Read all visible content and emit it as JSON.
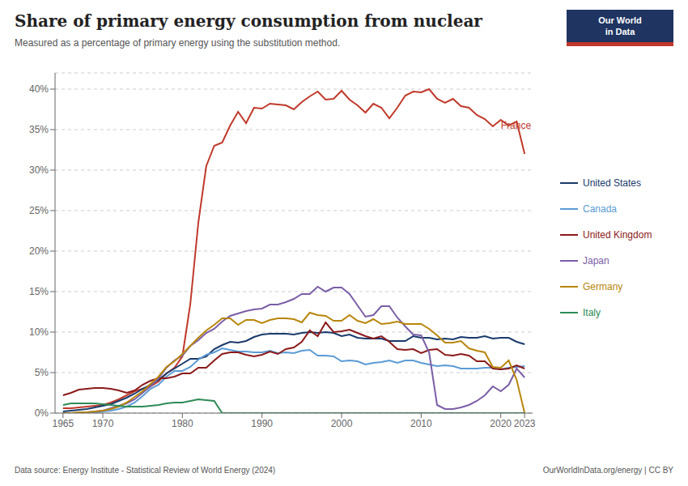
{
  "chart_data": {
    "type": "line",
    "title": "Share of primary energy consumption from nuclear",
    "subtitle": "Measured as a percentage of primary energy using the substitution method.",
    "source": "Data source: Energy Institute - Statistical Review of World Energy (2024)",
    "credit": "OurWorldInData.org/energy | CC BY",
    "logo_text": [
      "Our World",
      "in Data"
    ],
    "logo_colors": [
      "#1f3461",
      "#c0392b"
    ],
    "x": [
      1965,
      1966,
      1967,
      1968,
      1969,
      1970,
      1971,
      1972,
      1973,
      1974,
      1975,
      1976,
      1977,
      1978,
      1979,
      1980,
      1981,
      1982,
      1983,
      1984,
      1985,
      1986,
      1987,
      1988,
      1989,
      1990,
      1991,
      1992,
      1993,
      1994,
      1995,
      1996,
      1997,
      1998,
      1999,
      2000,
      2001,
      2002,
      2003,
      2004,
      2005,
      2006,
      2007,
      2008,
      2009,
      2010,
      2011,
      2012,
      2013,
      2014,
      2015,
      2016,
      2017,
      2018,
      2019,
      2020,
      2021,
      2022,
      2023
    ],
    "series": [
      {
        "name": "France",
        "color": "#c0392b",
        "values": [
          0.6,
          0.6,
          0.7,
          0.8,
          0.9,
          1.0,
          1.3,
          1.7,
          2.2,
          2.7,
          3.0,
          3.3,
          3.9,
          4.9,
          5.6,
          7.0,
          13.5,
          23.5,
          30.5,
          33.0,
          33.4,
          35.5,
          37.2,
          35.8,
          37.7,
          37.6,
          38.2,
          38.1,
          38.0,
          37.5,
          38.4,
          39.1,
          39.7,
          38.7,
          38.8,
          39.8,
          38.7,
          38.0,
          37.1,
          38.2,
          37.7,
          36.4,
          37.7,
          39.2,
          39.7,
          39.6,
          40.0,
          38.8,
          38.3,
          38.8,
          37.9,
          37.7,
          36.8,
          36.3,
          35.4,
          36.2,
          35.5,
          36.0,
          32.0
        ]
      },
      {
        "name": "United States",
        "color": "#1a3a6b",
        "values": [
          0.2,
          0.3,
          0.4,
          0.5,
          0.7,
          0.9,
          1.1,
          1.5,
          1.9,
          2.4,
          3.0,
          3.5,
          4.1,
          4.9,
          5.5,
          6.1,
          6.7,
          6.7,
          7.0,
          7.9,
          8.4,
          8.8,
          8.7,
          8.9,
          9.4,
          9.7,
          9.8,
          9.8,
          9.8,
          9.7,
          9.9,
          10.0,
          9.9,
          10.0,
          9.9,
          9.5,
          9.7,
          9.3,
          9.2,
          9.2,
          9.2,
          8.9,
          8.9,
          8.9,
          9.5,
          9.3,
          9.3,
          9.1,
          9.2,
          9.1,
          9.4,
          9.3,
          9.3,
          9.5,
          9.2,
          9.3,
          9.3,
          8.8,
          8.5
        ]
      },
      {
        "name": "Canada",
        "color": "#5b9bd5",
        "values": [
          0.0,
          0.0,
          0.0,
          0.0,
          0.0,
          0.2,
          0.3,
          0.5,
          0.8,
          1.3,
          2.1,
          3.0,
          3.5,
          4.5,
          5.2,
          5.2,
          5.7,
          6.6,
          7.2,
          7.5,
          8.0,
          7.8,
          7.6,
          7.6,
          7.5,
          7.5,
          7.7,
          7.4,
          7.5,
          7.4,
          7.7,
          7.8,
          7.1,
          7.1,
          7.0,
          6.4,
          6.5,
          6.4,
          6.0,
          6.2,
          6.3,
          6.5,
          6.2,
          6.5,
          6.5,
          6.2,
          6.0,
          5.8,
          5.9,
          5.8,
          5.5,
          5.5,
          5.5,
          5.6,
          5.6,
          5.4,
          5.6,
          5.7,
          5.8
        ]
      },
      {
        "name": "United Kingdom",
        "color": "#8b1a1a",
        "values": [
          2.2,
          2.5,
          2.9,
          3.0,
          3.1,
          3.1,
          3.0,
          2.8,
          2.5,
          2.8,
          3.5,
          4.0,
          4.3,
          4.3,
          4.5,
          4.9,
          4.9,
          5.6,
          5.6,
          6.5,
          7.3,
          7.5,
          7.5,
          7.2,
          7.0,
          7.2,
          7.6,
          7.3,
          7.9,
          8.1,
          8.8,
          10.2,
          9.5,
          11.2,
          10.0,
          10.1,
          10.3,
          9.9,
          9.5,
          9.2,
          9.5,
          8.8,
          7.9,
          7.8,
          7.9,
          7.4,
          7.8,
          7.9,
          7.2,
          7.1,
          7.3,
          7.1,
          6.4,
          6.4,
          5.5,
          5.4,
          5.5,
          5.9,
          5.5
        ]
      },
      {
        "name": "Japan",
        "color": "#7b5ea7",
        "values": [
          0.0,
          0.0,
          0.0,
          0.1,
          0.2,
          0.3,
          0.6,
          0.9,
          1.2,
          1.7,
          2.5,
          3.3,
          4.3,
          5.6,
          6.5,
          7.1,
          8.3,
          9.0,
          9.9,
          10.4,
          11.3,
          12.0,
          12.3,
          12.6,
          12.8,
          12.9,
          13.4,
          13.4,
          13.7,
          14.1,
          14.7,
          14.7,
          15.6,
          15.0,
          15.5,
          15.5,
          14.7,
          13.3,
          11.9,
          12.1,
          13.2,
          13.2,
          11.8,
          10.7,
          9.7,
          9.6,
          7.5,
          1.0,
          0.5,
          0.5,
          0.7,
          1.0,
          1.5,
          2.2,
          3.3,
          2.7,
          3.5,
          5.5,
          4.4
        ]
      },
      {
        "name": "Germany",
        "color": "#b8860b",
        "values": [
          0.0,
          0.0,
          0.1,
          0.1,
          0.2,
          0.3,
          0.5,
          0.8,
          1.3,
          2.0,
          2.7,
          3.6,
          4.5,
          5.7,
          6.4,
          7.3,
          8.3,
          9.3,
          10.2,
          10.9,
          11.7,
          11.7,
          10.9,
          11.5,
          11.5,
          11.1,
          11.5,
          11.7,
          11.7,
          11.6,
          11.2,
          12.4,
          12.1,
          12.0,
          11.4,
          11.4,
          12.1,
          11.4,
          11.1,
          11.6,
          11.0,
          11.1,
          11.3,
          11.0,
          11.0,
          11.0,
          10.4,
          9.6,
          8.7,
          8.7,
          8.9,
          8.0,
          7.7,
          7.5,
          5.7,
          5.6,
          6.5,
          4.1,
          0.0
        ]
      },
      {
        "name": "Italy",
        "color": "#2e8b57",
        "values": [
          1.0,
          1.2,
          1.2,
          1.2,
          1.2,
          1.1,
          1.0,
          0.9,
          0.8,
          0.8,
          0.8,
          0.9,
          1.0,
          1.2,
          1.3,
          1.3,
          1.5,
          1.7,
          1.6,
          1.5,
          0.0,
          0.0,
          0.0,
          0.0,
          0.0,
          0.0,
          0.0,
          0.0,
          0.0,
          0.0,
          0.0,
          0.0,
          0.0,
          0.0,
          0.0,
          0.0,
          0.0,
          0.0,
          0.0,
          0.0,
          0.0,
          0.0,
          0.0,
          0.0,
          0.0,
          0.0,
          0.0,
          0.0,
          0.0,
          0.0,
          0.0,
          0.0,
          0.0,
          0.0,
          0.0,
          0.0,
          0.0,
          0.0,
          0.0
        ]
      }
    ],
    "xlim": [
      1964,
      2024
    ],
    "xticks": [
      1965,
      1970,
      1980,
      1990,
      2000,
      2010,
      2020,
      2023
    ],
    "ylim": [
      0,
      42
    ],
    "yticks": [
      {
        "value": 0,
        "label": "0%"
      },
      {
        "value": 5,
        "label": "5%"
      },
      {
        "value": 10,
        "label": "10%"
      },
      {
        "value": 15,
        "label": "15%"
      },
      {
        "value": 20,
        "label": "20%"
      },
      {
        "value": 25,
        "label": "25%"
      },
      {
        "value": 30,
        "label": "30%"
      },
      {
        "value": 35,
        "label": "35%"
      },
      {
        "value": 40,
        "label": "40%"
      }
    ],
    "grid": true,
    "legend": "right",
    "annotations": [
      {
        "text": "France",
        "x": 2019.5,
        "y": 35.5
      }
    ]
  }
}
